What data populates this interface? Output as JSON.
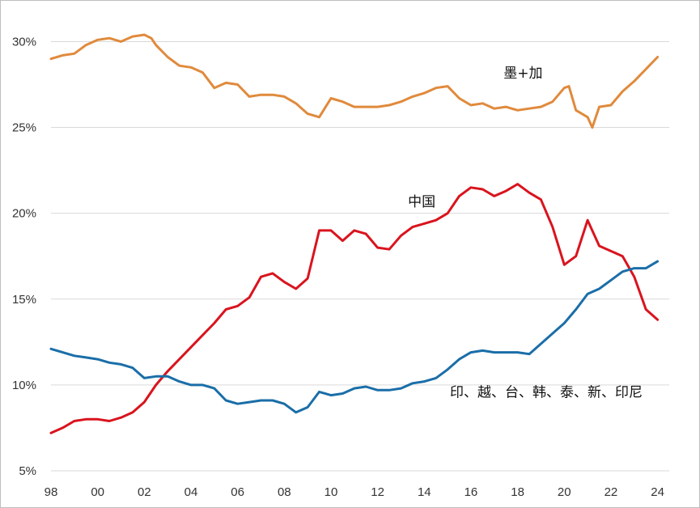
{
  "chart_data": {
    "type": "line",
    "title": "",
    "xlabel": "",
    "ylabel": "",
    "xlim": [
      1998,
      2024.5
    ],
    "ylim": [
      5,
      32
    ],
    "grid": true,
    "y_ticks": [
      {
        "value": 5,
        "label": "5%"
      },
      {
        "value": 10,
        "label": "10%"
      },
      {
        "value": 15,
        "label": "15%"
      },
      {
        "value": 20,
        "label": "20%"
      },
      {
        "value": 25,
        "label": "25%"
      },
      {
        "value": 30,
        "label": "30%"
      }
    ],
    "x_ticks": [
      {
        "value": 1998,
        "label": "98"
      },
      {
        "value": 2000,
        "label": "00"
      },
      {
        "value": 2002,
        "label": "02"
      },
      {
        "value": 2004,
        "label": "04"
      },
      {
        "value": 2006,
        "label": "06"
      },
      {
        "value": 2008,
        "label": "08"
      },
      {
        "value": 2010,
        "label": "10"
      },
      {
        "value": 2012,
        "label": "12"
      },
      {
        "value": 2014,
        "label": "14"
      },
      {
        "value": 2016,
        "label": "16"
      },
      {
        "value": 2018,
        "label": "18"
      },
      {
        "value": 2020,
        "label": "20"
      },
      {
        "value": 2022,
        "label": "22"
      },
      {
        "value": 2024,
        "label": "24"
      }
    ],
    "series": [
      {
        "name": "墨+加",
        "color": "#e08a3c",
        "label_at": [
          2017.4,
          27.9
        ],
        "x": [
          1998,
          1998.5,
          1999,
          1999.5,
          2000,
          2000.5,
          2001,
          2001.5,
          2002,
          2002.3,
          2002.5,
          2003,
          2003.5,
          2004,
          2004.5,
          2005,
          2005.5,
          2006,
          2006.5,
          2007,
          2007.5,
          2008,
          2008.5,
          2009,
          2009.5,
          2010,
          2010.5,
          2011,
          2011.5,
          2012,
          2012.5,
          2013,
          2013.5,
          2014,
          2014.5,
          2015,
          2015.5,
          2016,
          2016.5,
          2017,
          2017.5,
          2018,
          2018.5,
          2019,
          2019.5,
          2020,
          2020.2,
          2020.5,
          2021,
          2021.2,
          2021.5,
          2022,
          2022.5,
          2023,
          2023.5,
          2024
        ],
        "y": [
          29.0,
          29.2,
          29.3,
          29.8,
          30.1,
          30.2,
          30.0,
          30.3,
          30.4,
          30.2,
          29.8,
          29.1,
          28.6,
          28.5,
          28.2,
          27.3,
          27.6,
          27.5,
          26.8,
          26.9,
          26.9,
          26.8,
          26.4,
          25.8,
          25.6,
          26.7,
          26.5,
          26.2,
          26.2,
          26.2,
          26.3,
          26.5,
          26.8,
          27.0,
          27.3,
          27.4,
          26.7,
          26.3,
          26.4,
          26.1,
          26.2,
          26.0,
          26.1,
          26.2,
          26.5,
          27.3,
          27.4,
          26.0,
          25.6,
          25.0,
          26.2,
          26.3,
          27.1,
          27.7,
          28.4,
          29.1
        ]
      },
      {
        "name": "中国",
        "color": "#d9141e",
        "label_at": [
          2013.3,
          20.4
        ],
        "x": [
          1998,
          1998.5,
          1999,
          1999.5,
          2000,
          2000.5,
          2001,
          2001.5,
          2002,
          2002.5,
          2003,
          2003.5,
          2004,
          2004.5,
          2005,
          2005.5,
          2006,
          2006.5,
          2007,
          2007.5,
          2008,
          2008.5,
          2009,
          2009.5,
          2010,
          2010.5,
          2011,
          2011.5,
          2012,
          2012.5,
          2013,
          2013.5,
          2014,
          2014.5,
          2015,
          2015.5,
          2016,
          2016.5,
          2017,
          2017.5,
          2018,
          2018.5,
          2019,
          2019.5,
          2020,
          2020.5,
          2021,
          2021.5,
          2022,
          2022.5,
          2023,
          2023.5,
          2024
        ],
        "y": [
          7.2,
          7.5,
          7.9,
          8.0,
          8.0,
          7.9,
          8.1,
          8.4,
          9.0,
          10.0,
          10.8,
          11.5,
          12.2,
          12.9,
          13.6,
          14.4,
          14.6,
          15.1,
          16.3,
          16.5,
          16.0,
          15.6,
          16.2,
          19.0,
          19.0,
          18.4,
          19.0,
          18.8,
          18.0,
          17.9,
          18.7,
          19.2,
          19.4,
          19.6,
          20.0,
          21.0,
          21.5,
          21.4,
          21.0,
          21.3,
          21.7,
          21.2,
          20.8,
          19.2,
          17.0,
          17.5,
          19.6,
          18.1,
          17.8,
          17.5,
          16.3,
          14.4,
          13.8
        ]
      },
      {
        "name": "印、越、台、韩、泰、新、印尼",
        "color": "#1a6ea8",
        "label_at": [
          2015.1,
          9.3
        ],
        "x": [
          1998,
          1998.5,
          1999,
          1999.5,
          2000,
          2000.5,
          2001,
          2001.5,
          2002,
          2002.5,
          2003,
          2003.5,
          2004,
          2004.5,
          2005,
          2005.5,
          2006,
          2006.5,
          2007,
          2007.5,
          2008,
          2008.5,
          2009,
          2009.5,
          2010,
          2010.5,
          2011,
          2011.5,
          2012,
          2012.5,
          2013,
          2013.5,
          2014,
          2014.5,
          2015,
          2015.5,
          2016,
          2016.5,
          2017,
          2017.5,
          2018,
          2018.5,
          2019,
          2019.5,
          2020,
          2020.5,
          2021,
          2021.5,
          2022,
          2022.5,
          2023,
          2023.5,
          2024
        ],
        "y": [
          12.1,
          11.9,
          11.7,
          11.6,
          11.5,
          11.3,
          11.2,
          11.0,
          10.4,
          10.5,
          10.5,
          10.2,
          10.0,
          10.0,
          9.8,
          9.1,
          8.9,
          9.0,
          9.1,
          9.1,
          8.9,
          8.4,
          8.7,
          9.6,
          9.4,
          9.5,
          9.8,
          9.9,
          9.7,
          9.7,
          9.8,
          10.1,
          10.2,
          10.4,
          10.9,
          11.5,
          11.9,
          12.0,
          11.9,
          11.9,
          11.9,
          11.8,
          12.4,
          13.0,
          13.6,
          14.4,
          15.3,
          15.6,
          16.1,
          16.6,
          16.8,
          16.8,
          17.2
        ]
      }
    ]
  }
}
